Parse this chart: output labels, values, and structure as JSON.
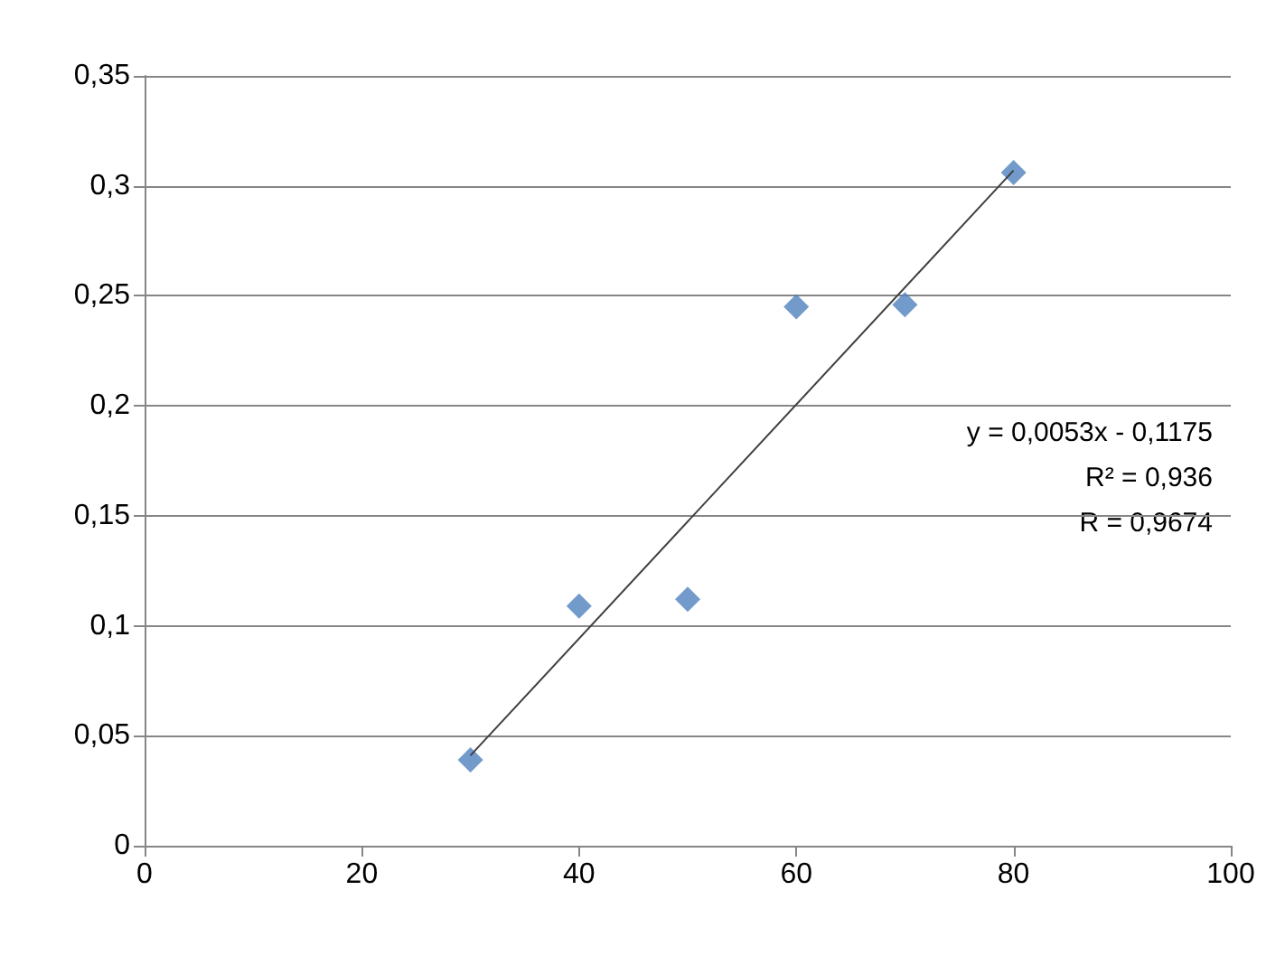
{
  "chart_data": {
    "type": "scatter",
    "x": [
      30,
      40,
      50,
      60,
      70,
      80
    ],
    "series": [
      {
        "color": "#4f81bd",
        "marker": "diamond",
        "values": [
          0.039,
          0.109,
          0.112,
          0.245,
          0.246,
          0.306
        ]
      },
      {
        "type": "line",
        "color": "#404040",
        "marker": "none",
        "x": [
          30,
          80
        ],
        "values": [
          0.041,
          0.307
        ]
      }
    ],
    "xlim": [
      0,
      100
    ],
    "xticks": [
      0,
      20,
      40,
      60,
      80,
      100
    ],
    "ylim": [
      0,
      0.35
    ],
    "yticks": [
      {
        "value": 0,
        "label": "0"
      },
      {
        "value": 0.05,
        "label": "0,05"
      },
      {
        "value": 0.1,
        "label": "0,1"
      },
      {
        "value": 0.15,
        "label": "0,15"
      },
      {
        "value": 0.2,
        "label": "0,2"
      },
      {
        "value": 0.25,
        "label": "0,25"
      },
      {
        "value": 0.3,
        "label": "0,3"
      },
      {
        "value": 0.35,
        "label": "0,35"
      }
    ],
    "grid": "y",
    "annotations": [
      "y = 0,0053x - 0,1175",
      "R² = 0,936",
      "R = 0,9674"
    ]
  }
}
